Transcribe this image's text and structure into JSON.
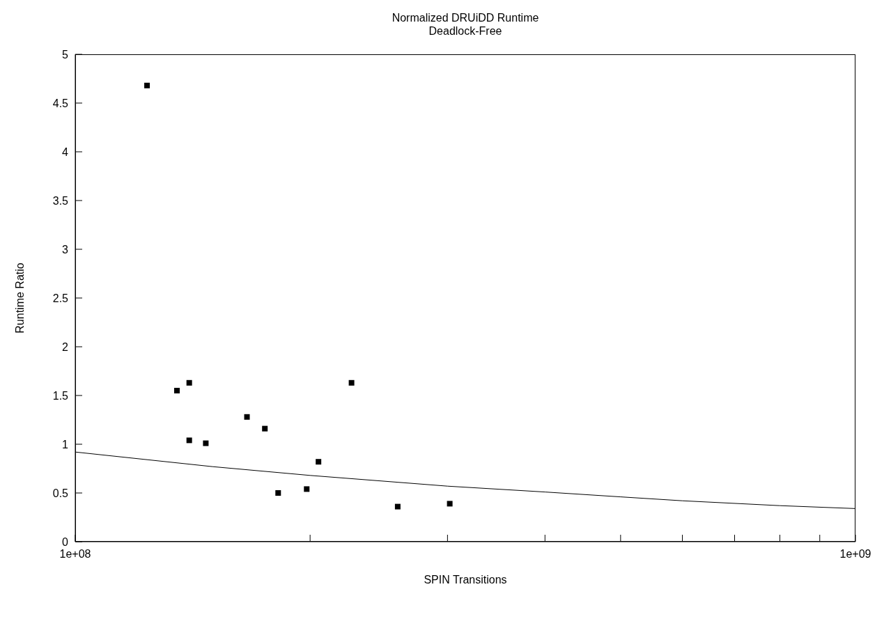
{
  "chart_data": {
    "type": "scatter",
    "title": "Normalized DRUiDD Runtime",
    "subtitle": "Deadlock-Free",
    "xlabel": "SPIN Transitions",
    "ylabel": "Runtime Ratio",
    "log": "x",
    "grid": false,
    "marker": "square",
    "xlim": [
      100000000,
      1000000000
    ],
    "xticks": [
      {
        "value": 100000000,
        "label": "1e+08"
      },
      {
        "value": 200000000,
        "label": null
      },
      {
        "value": 300000000,
        "label": null
      },
      {
        "value": 400000000,
        "label": null
      },
      {
        "value": 500000000,
        "label": null
      },
      {
        "value": 600000000,
        "label": null
      },
      {
        "value": 700000000,
        "label": null
      },
      {
        "value": 800000000,
        "label": null
      },
      {
        "value": 900000000,
        "label": null
      },
      {
        "value": 1000000000,
        "label": "1e+09"
      }
    ],
    "ylim": [
      0,
      5
    ],
    "yticks": [
      0,
      0.5,
      1,
      1.5,
      2,
      2.5,
      3,
      3.5,
      4,
      4.5,
      5
    ],
    "series": [
      {
        "color": "#000000",
        "x": [
          123600000,
          135000000,
          140000000,
          140000000,
          147000000,
          166000000,
          175000000,
          182000000,
          198000000,
          205000000,
          226000000,
          259000000,
          302000000
        ],
        "values": [
          4.68,
          1.55,
          1.63,
          1.04,
          1.01,
          1.28,
          1.16,
          0.5,
          0.54,
          0.82,
          1.63,
          0.36,
          0.39
        ]
      },
      {
        "type": "line",
        "color": "#000000",
        "line_style": "solid",
        "marker": "none",
        "x": [
          100000000,
          150000000,
          200000000,
          300000000,
          400000000,
          500000000,
          600000000,
          800000000,
          1000000000
        ],
        "values": [
          0.92,
          0.77,
          0.68,
          0.57,
          0.51,
          0.46,
          0.42,
          0.37,
          0.34
        ]
      }
    ]
  }
}
